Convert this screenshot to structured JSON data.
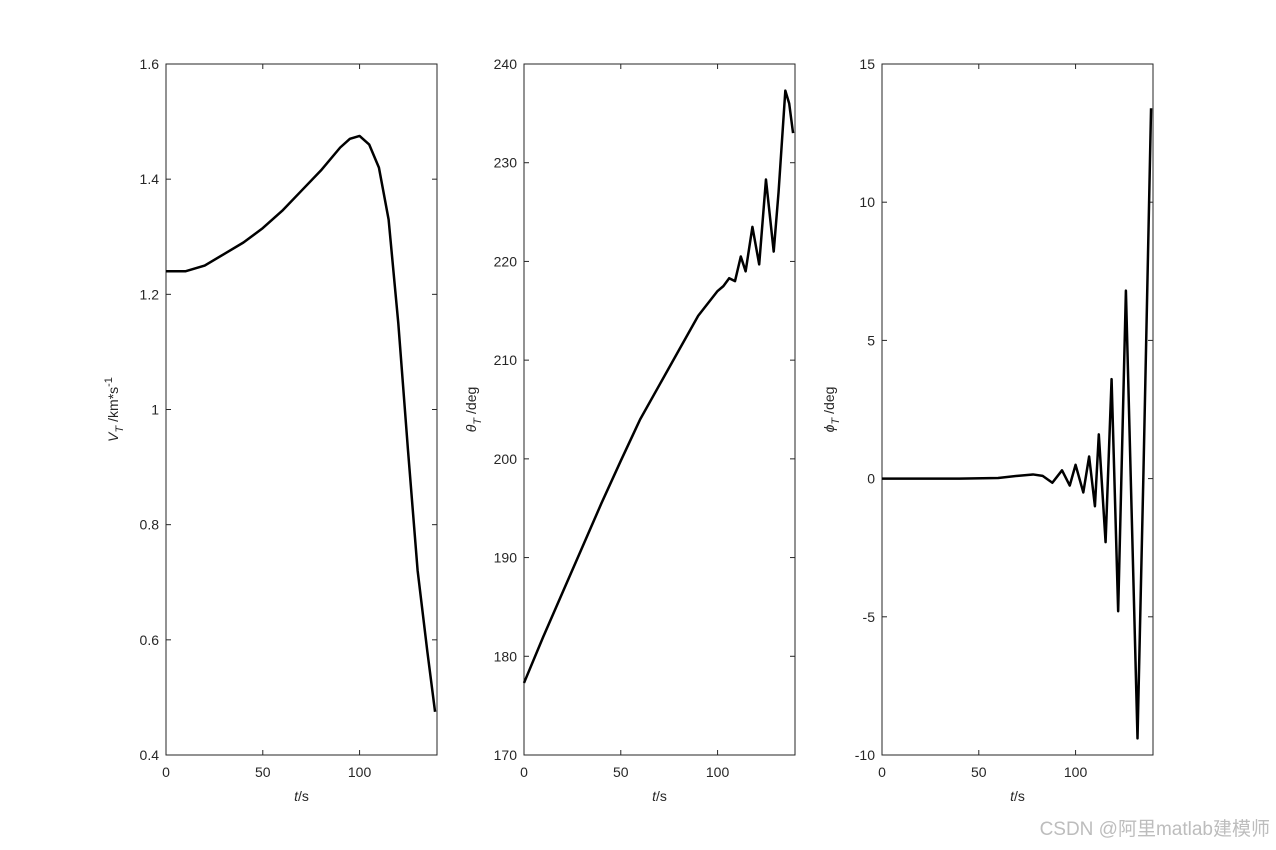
{
  "chart_data": [
    {
      "type": "line",
      "color": "#000000",
      "grid": false,
      "xlabel": {
        "italic": "t",
        "text": "/s"
      },
      "ylabel": {
        "symbol": "V",
        "subscript": "T",
        "unit": "/km*s",
        "superscript": "-1"
      },
      "xlim": [
        0,
        140
      ],
      "ylim": [
        0.4,
        1.6
      ],
      "xticks": [
        0,
        50,
        100
      ],
      "yticks": [
        0.4,
        0.6,
        0.8,
        1,
        1.2,
        1.4,
        1.6
      ],
      "x": [
        0,
        10,
        20,
        30,
        40,
        50,
        60,
        70,
        80,
        90,
        95,
        100,
        105,
        110,
        115,
        120,
        125,
        130,
        135,
        139
      ],
      "values": [
        1.24,
        1.24,
        1.25,
        1.27,
        1.29,
        1.315,
        1.345,
        1.38,
        1.415,
        1.455,
        1.47,
        1.475,
        1.46,
        1.42,
        1.33,
        1.15,
        0.93,
        0.72,
        0.58,
        0.475
      ]
    },
    {
      "type": "line",
      "color": "#000000",
      "grid": false,
      "xlabel": {
        "italic": "t",
        "text": "/s"
      },
      "ylabel": {
        "symbol": "θ",
        "subscript": "T",
        "unit": "/deg"
      },
      "xlim": [
        0,
        140
      ],
      "ylim": [
        170,
        240
      ],
      "xticks": [
        0,
        50,
        100
      ],
      "yticks": [
        170,
        180,
        190,
        200,
        210,
        220,
        230,
        240
      ],
      "x": [
        0,
        10,
        20,
        30,
        40,
        50,
        60,
        70,
        80,
        90,
        100,
        103,
        106,
        109,
        112,
        114.5,
        118,
        121.5,
        125,
        129,
        131.5,
        135,
        137,
        139
      ],
      "values": [
        177.3,
        182,
        186.5,
        191,
        195.5,
        199.8,
        204,
        207.5,
        211,
        214.5,
        217,
        217.5,
        218.3,
        218,
        220.5,
        219,
        223.5,
        219.7,
        228.3,
        221,
        227,
        237.3,
        236,
        233
      ]
    },
    {
      "type": "line",
      "color": "#000000",
      "grid": false,
      "xlabel": {
        "italic": "t",
        "text": "/s"
      },
      "ylabel": {
        "symbol": "ϕ",
        "subscript": "T",
        "unit": "/deg"
      },
      "xlim": [
        0,
        140
      ],
      "ylim": [
        -10,
        15
      ],
      "xticks": [
        0,
        50,
        100
      ],
      "yticks": [
        -10,
        -5,
        0,
        5,
        10,
        15
      ],
      "x": [
        0,
        20,
        40,
        60,
        70,
        78,
        83,
        88,
        93,
        97,
        100,
        104,
        107,
        110,
        112,
        115.5,
        118.6,
        122,
        126,
        132,
        135,
        139
      ],
      "values": [
        0,
        0,
        0,
        0.02,
        0.1,
        0.15,
        0.1,
        -0.15,
        0.3,
        -0.25,
        0.5,
        -0.5,
        0.8,
        -1.0,
        1.6,
        -2.3,
        3.6,
        -4.8,
        6.8,
        -9.4,
        0,
        13.4
      ]
    }
  ],
  "watermark": "CSDN @阿里matlab建模师"
}
